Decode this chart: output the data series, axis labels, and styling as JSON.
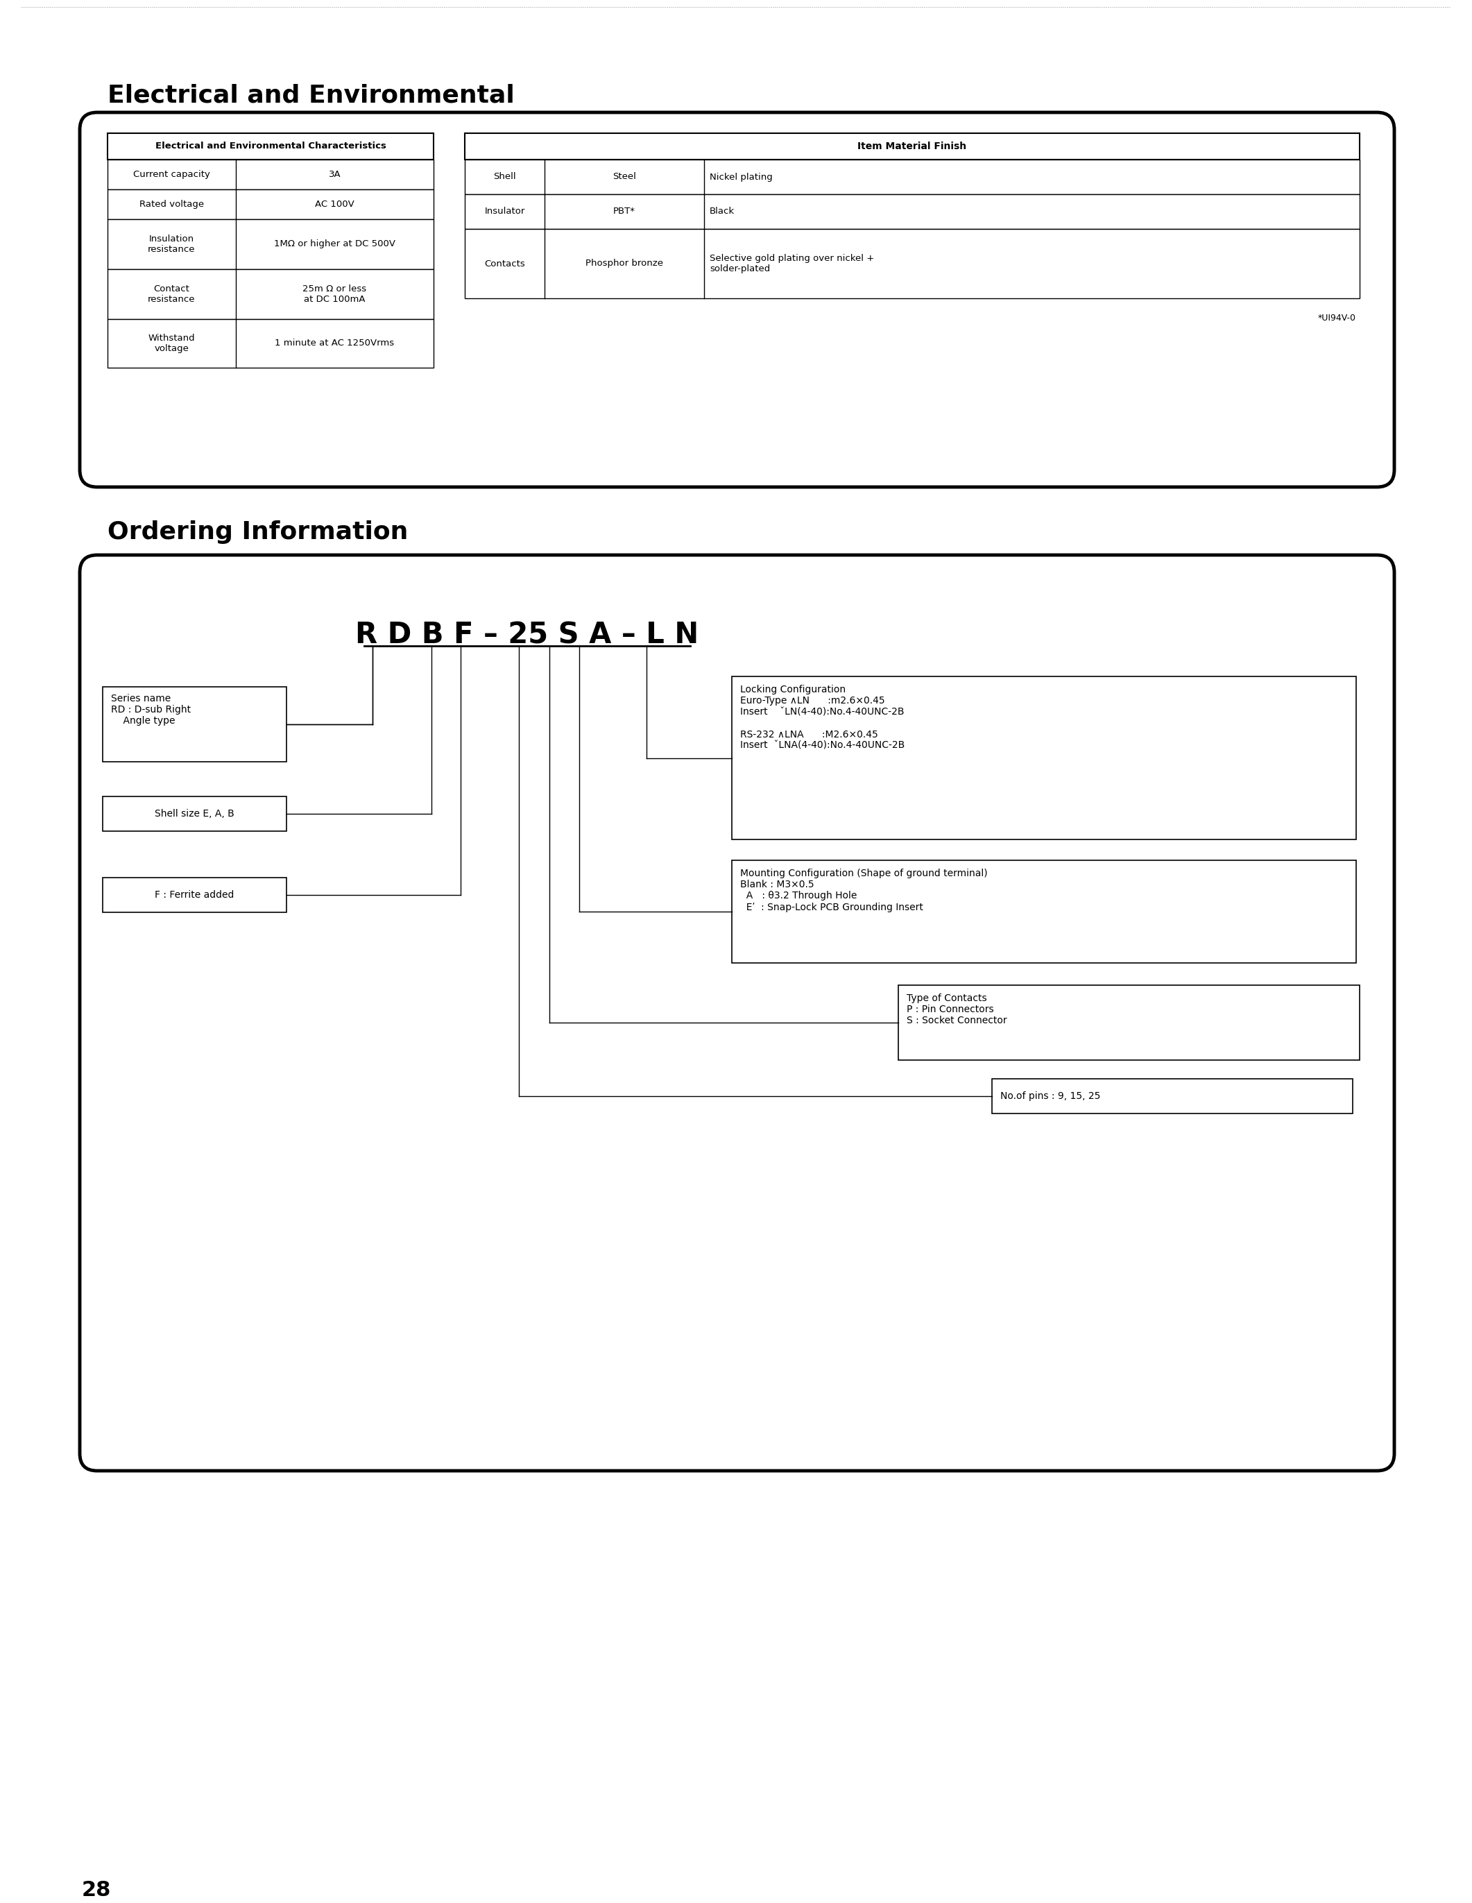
{
  "page_bg": "#ffffff",
  "section1_title": "Electrical and Environmental",
  "section2_title": "Ordering Information",
  "page_number": "28",
  "elec_table": {
    "rows": [
      [
        "Current capacity",
        "3A"
      ],
      [
        "Rated voltage",
        "AC 100V"
      ],
      [
        "Insulation\nresistance",
        "1MΩ or higher at DC 500V"
      ],
      [
        "Contact\nresistance",
        "25m Ω or less\nat DC 100mA"
      ],
      [
        "Withstand\nvoltage",
        "1 minute at AC 1250Vrms"
      ]
    ]
  },
  "material_table": {
    "rows": [
      [
        "Shell",
        "Steel",
        "Nickel plating"
      ],
      [
        "Insulator",
        "PBT*",
        "Black"
      ],
      [
        "Contacts",
        "Phosphor bronze",
        "Selective gold plating over nickel +\nsolder-plated"
      ]
    ],
    "footnote": "*UI94V-0"
  },
  "ordering_code": "R D B F – 25 S A – L N"
}
